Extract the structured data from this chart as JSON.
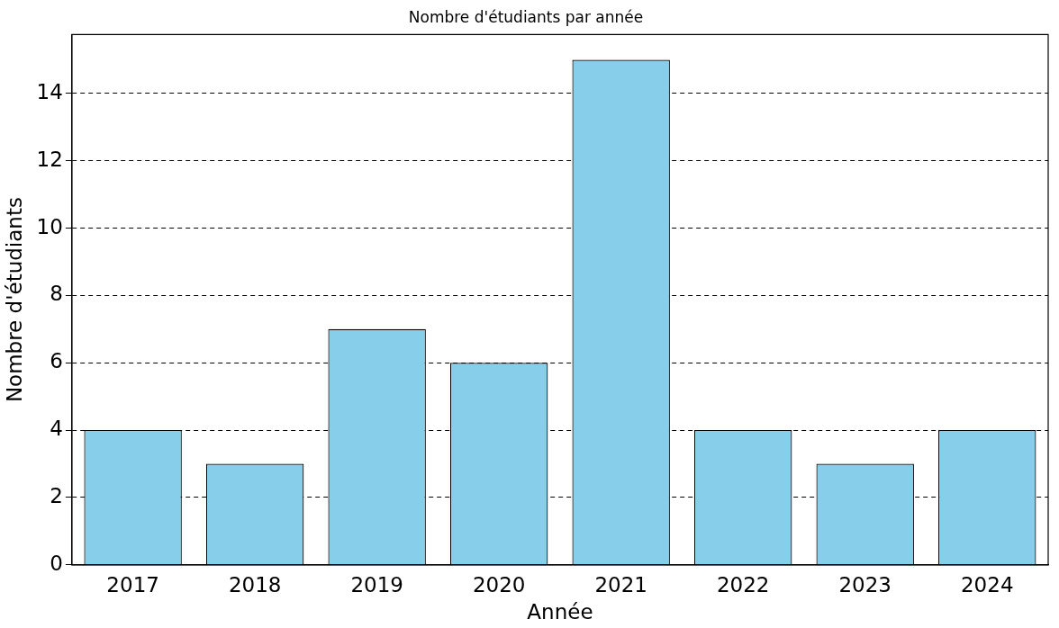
{
  "chart_data": {
    "type": "bar",
    "title": "Nombre d'étudiants par année",
    "xlabel": "Année",
    "ylabel": "Nombre d'étudiants",
    "categories": [
      "2017",
      "2018",
      "2019",
      "2020",
      "2021",
      "2022",
      "2023",
      "2024"
    ],
    "values": [
      4,
      3,
      7,
      6,
      15,
      4,
      3,
      4
    ],
    "color": "#87ceeb",
    "ylim": [
      0,
      15.75
    ],
    "yticks": [
      0,
      2,
      4,
      6,
      8,
      10,
      12,
      14
    ],
    "grid": "y"
  }
}
